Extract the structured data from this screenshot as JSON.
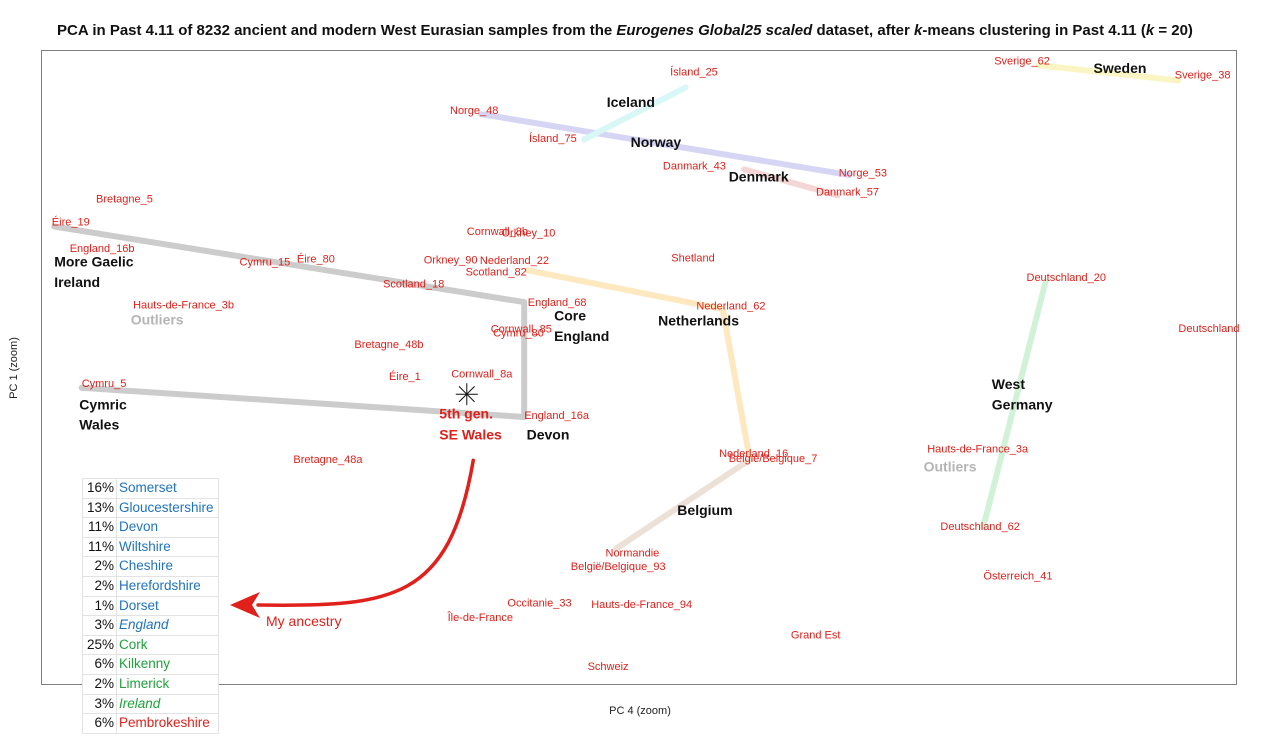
{
  "title": {
    "prefix": "PCA in Past 4.11 of 8232 ancient and modern West Eurasian samples from the ",
    "dataset": "Eurogenes Global25 scaled",
    "middle": " dataset, after ",
    "k_var": "k",
    "suffix1": "-means clustering in Past 4.11 (",
    "k_var2": "k",
    "suffix2": " = 20)"
  },
  "chart_data": {
    "type": "scatter",
    "xlabel": "PC 4 (zoom)",
    "ylabel": "PC 1 (zoom)",
    "xlim": [
      0,
      1000
    ],
    "ylim": [
      0,
      1000
    ],
    "points": [
      {
        "label": "Ísland_25",
        "x": 526,
        "y": 960
      },
      {
        "label": "Sverige_62",
        "x": 797,
        "y": 977
      },
      {
        "label": "Sverige_38",
        "x": 948,
        "y": 955
      },
      {
        "label": "Norge_48",
        "x": 342,
        "y": 899
      },
      {
        "label": "Ísland_75",
        "x": 408,
        "y": 855
      },
      {
        "label": "Norge_53",
        "x": 667,
        "y": 801
      },
      {
        "label": "Danmark_43",
        "x": 520,
        "y": 812
      },
      {
        "label": "Danmark_57",
        "x": 648,
        "y": 771
      },
      {
        "label": "Bretagne_5",
        "x": 46,
        "y": 760
      },
      {
        "label": "Éire_19",
        "x": 9,
        "y": 724
      },
      {
        "label": "Cornwall_8b",
        "x": 356,
        "y": 709
      },
      {
        "label": "Orkney_10",
        "x": 385,
        "y": 706
      },
      {
        "label": "England_16b",
        "x": 24,
        "y": 682
      },
      {
        "label": "Cymru_15",
        "x": 166,
        "y": 661
      },
      {
        "label": "Éire_80",
        "x": 214,
        "y": 665
      },
      {
        "label": "Orkney_90",
        "x": 320,
        "y": 664
      },
      {
        "label": "Nederland_22",
        "x": 367,
        "y": 663
      },
      {
        "label": "Scotland_82",
        "x": 355,
        "y": 645
      },
      {
        "label": "Shetland",
        "x": 527,
        "y": 667
      },
      {
        "label": "Deutschland_20",
        "x": 824,
        "y": 636
      },
      {
        "label": "Scotland_18",
        "x": 286,
        "y": 626
      },
      {
        "label": "England_68",
        "x": 407,
        "y": 597
      },
      {
        "label": "Hauts-de-France_3b",
        "x": 77,
        "y": 593
      },
      {
        "label": "Nederland_62",
        "x": 548,
        "y": 591
      },
      {
        "label": "Deutschland",
        "x": 951,
        "y": 556
      },
      {
        "label": "Cornwall_85",
        "x": 376,
        "y": 555
      },
      {
        "label": "Cymru_80",
        "x": 378,
        "y": 549
      },
      {
        "label": "Bretagne_48b",
        "x": 262,
        "y": 531
      },
      {
        "label": "Cymru_5",
        "x": 34,
        "y": 469
      },
      {
        "label": "Éire_1",
        "x": 291,
        "y": 480
      },
      {
        "label": "Cornwall_8a",
        "x": 343,
        "y": 484
      },
      {
        "label": "England_16a",
        "x": 404,
        "y": 419
      },
      {
        "label": "Hauts-de-France_3a",
        "x": 741,
        "y": 366
      },
      {
        "label": "Nederland_16",
        "x": 567,
        "y": 359
      },
      {
        "label": "België/Belgique_7",
        "x": 575,
        "y": 351
      },
      {
        "label": "Bretagne_48a",
        "x": 211,
        "y": 350
      },
      {
        "label": "Deutschland_62",
        "x": 752,
        "y": 244
      },
      {
        "label": "Normandie",
        "x": 472,
        "y": 202
      },
      {
        "label": "België/Belgique_93",
        "x": 443,
        "y": 181
      },
      {
        "label": "Österreich_41",
        "x": 788,
        "y": 166
      },
      {
        "label": "Occitanie_33",
        "x": 390,
        "y": 124
      },
      {
        "label": "Hauts-de-France_94",
        "x": 460,
        "y": 121
      },
      {
        "label": "Île-de-France",
        "x": 340,
        "y": 101
      },
      {
        "label": "Grand Est",
        "x": 627,
        "y": 73
      },
      {
        "label": "Schweiz",
        "x": 457,
        "y": 24
      }
    ],
    "clusters": [
      {
        "name": "Iceland",
        "x": 473,
        "y": 910
      },
      {
        "name": "Sweden",
        "x": 880,
        "y": 964
      },
      {
        "name": "Norway",
        "x": 493,
        "y": 847
      },
      {
        "name": "Denmark",
        "x": 575,
        "y": 793
      },
      {
        "name": "More Gaelic",
        "x": 11,
        "y": 659
      },
      {
        "name": "Ireland",
        "x": 11,
        "y": 627
      },
      {
        "name": "Core",
        "x": 429,
        "y": 574
      },
      {
        "name": "England",
        "x": 429,
        "y": 542
      },
      {
        "name": "Netherlands",
        "x": 516,
        "y": 566
      },
      {
        "name": "West",
        "x": 795,
        "y": 466
      },
      {
        "name": "Germany",
        "x": 795,
        "y": 434
      },
      {
        "name": "Cymric",
        "x": 32,
        "y": 434
      },
      {
        "name": "Wales",
        "x": 32,
        "y": 402
      },
      {
        "name": "Devon",
        "x": 406,
        "y": 387
      },
      {
        "name": "Belgium",
        "x": 532,
        "y": 268
      }
    ],
    "outlier_labels": [
      {
        "name": "Outliers",
        "x": 75,
        "y": 568
      },
      {
        "name": "Outliers",
        "x": 738,
        "y": 336
      }
    ],
    "annotations": [
      {
        "lines": [
          "5th gen.",
          "SE Wales"
        ],
        "x": 333,
        "y": 420
      },
      {
        "text": "My ancestry",
        "x": 188,
        "y": 99
      }
    ],
    "marker": {
      "name": "5th gen. SE Wales",
      "x": 356,
      "y": 458
    },
    "paths": [
      {
        "color": "#cccccc",
        "points": [
          [
            11,
            722
          ],
          [
            404,
            603
          ],
          [
            404,
            422
          ]
        ]
      },
      {
        "color": "#cccccc",
        "points": [
          [
            34,
            468
          ],
          [
            404,
            422
          ]
        ]
      },
      {
        "color": "#d6d6f4",
        "points": [
          [
            368,
            899
          ],
          [
            676,
            803
          ]
        ]
      },
      {
        "color": "#d8f7f6",
        "points": [
          [
            454,
            859
          ],
          [
            539,
            941
          ]
        ]
      },
      {
        "color": "#f4d6d6",
        "points": [
          [
            588,
            812
          ],
          [
            666,
            771
          ]
        ]
      },
      {
        "color": "#fbf5c3",
        "points": [
          [
            834,
            976
          ],
          [
            951,
            952
          ]
        ]
      },
      {
        "color": "#fde8bf",
        "points": [
          [
            407,
            653
          ],
          [
            570,
            592
          ],
          [
            592,
            362
          ]
        ]
      },
      {
        "color": "#ece1d6",
        "points": [
          [
            592,
            354
          ],
          [
            481,
            215
          ]
        ]
      },
      {
        "color": "#d1f2d7",
        "points": [
          [
            840,
            635
          ],
          [
            788,
            249
          ]
        ]
      }
    ]
  },
  "ancestry_table": [
    {
      "pct": "16%",
      "place": "Somerset",
      "color": "blue",
      "italic": false
    },
    {
      "pct": "13%",
      "place": "Gloucestershire",
      "color": "blue",
      "italic": false
    },
    {
      "pct": "11%",
      "place": "Devon",
      "color": "blue",
      "italic": false
    },
    {
      "pct": "11%",
      "place": "Wiltshire",
      "color": "blue",
      "italic": false
    },
    {
      "pct": "2%",
      "place": "Cheshire",
      "color": "blue",
      "italic": false
    },
    {
      "pct": "2%",
      "place": "Herefordshire",
      "color": "blue",
      "italic": false
    },
    {
      "pct": "1%",
      "place": "Dorset",
      "color": "blue",
      "italic": false
    },
    {
      "pct": "3%",
      "place": "England",
      "color": "blue",
      "italic": true
    },
    {
      "pct": "25%",
      "place": "Cork",
      "color": "green",
      "italic": false
    },
    {
      "pct": "6%",
      "place": "Kilkenny",
      "color": "green",
      "italic": false
    },
    {
      "pct": "2%",
      "place": "Limerick",
      "color": "green",
      "italic": false
    },
    {
      "pct": "3%",
      "place": "Ireland",
      "color": "green",
      "italic": true
    },
    {
      "pct": "6%",
      "place": "Pembrokeshire",
      "color": "red",
      "italic": false
    }
  ],
  "colors": {
    "point_label": "#e0201a",
    "arrow": "#e0201a",
    "outlier": "#b5b5b5"
  }
}
